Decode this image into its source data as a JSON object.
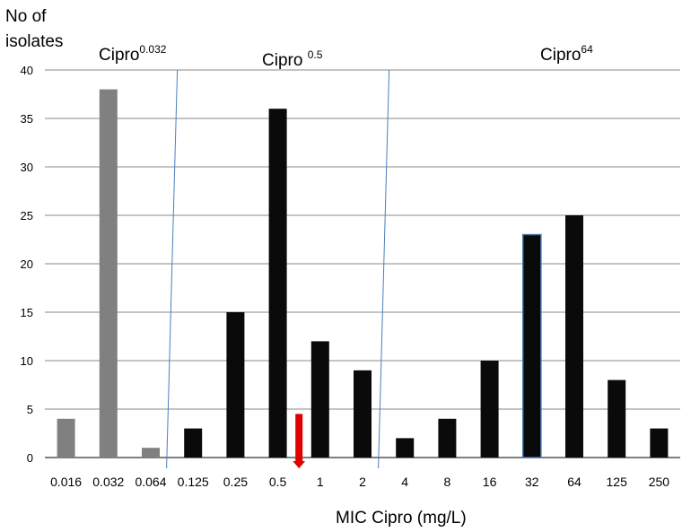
{
  "chart_data": {
    "type": "bar",
    "ylabel_line1": "No of",
    "ylabel_line2": "isolates",
    "xlabel": "MIC Cipro (mg/L)",
    "ylim": [
      0,
      40
    ],
    "yticks": [
      0,
      5,
      10,
      15,
      20,
      25,
      30,
      35,
      40
    ],
    "grid": true,
    "categories": [
      "0.016",
      "0.032",
      "0.064",
      "0.125",
      "0.25",
      "0.5",
      "1",
      "2",
      "4",
      "8",
      "16",
      "32",
      "64",
      "125",
      "250"
    ],
    "values": [
      4,
      38,
      1,
      3,
      15,
      36,
      12,
      9,
      2,
      4,
      10,
      23,
      25,
      8,
      3
    ],
    "bar_colors": [
      "#808080",
      "#808080",
      "#808080",
      "#0a0a0a",
      "#0a0a0a",
      "#0a0a0a",
      "#0a0a0a",
      "#0a0a0a",
      "#0a0a0a",
      "#0a0a0a",
      "#0a0a0a",
      "#0a0a0a",
      "#0a0a0a",
      "#0a0a0a",
      "#0a0a0a"
    ],
    "highlight_category": "32",
    "highlight_outline_color": "#3a6f9f",
    "group_labels": [
      {
        "base": "Cipro",
        "sup": "0.032"
      },
      {
        "base": "Cipro ",
        "sup": "0.5"
      },
      {
        "base": "Cipro",
        "sup": "64"
      }
    ],
    "group_dividers": [
      {
        "between": [
          "0.064",
          "0.125"
        ]
      },
      {
        "between": [
          "2",
          "4"
        ]
      }
    ],
    "divider_color": "#4a7fbf",
    "marker": {
      "type": "down-arrow",
      "between": [
        "0.5",
        "1"
      ],
      "level": 4.5,
      "color": "#e00000"
    }
  }
}
